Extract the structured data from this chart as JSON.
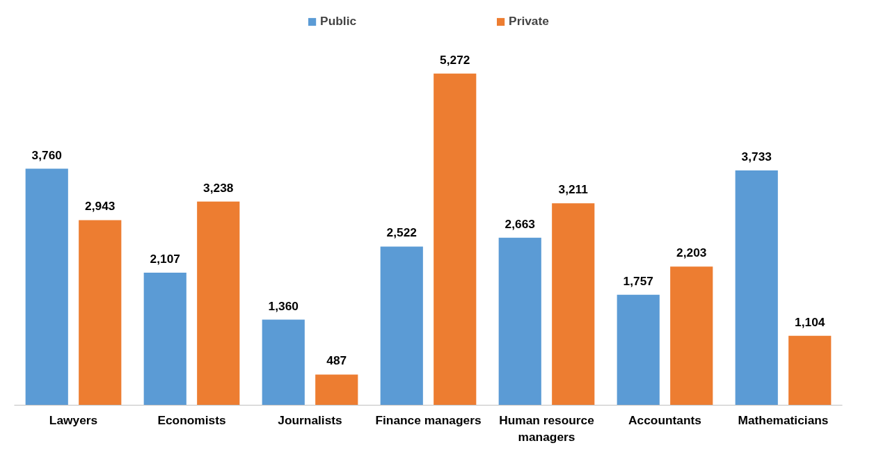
{
  "chart_data": {
    "type": "bar",
    "categories": [
      "Lawyers",
      "Economists",
      "Journalists",
      "Finance managers",
      "Human resource managers",
      "Accountants",
      "Mathematicians"
    ],
    "series": [
      {
        "name": "Public",
        "color": "#5b9bd5",
        "values": [
          3760,
          2107,
          1360,
          2522,
          2663,
          1757,
          3733
        ],
        "value_labels": [
          "3,760",
          "2,107",
          "1,360",
          "2,522",
          "2,663",
          "1,757",
          "3,733"
        ]
      },
      {
        "name": "Private",
        "color": "#ed7d31",
        "values": [
          2943,
          3238,
          487,
          5272,
          3211,
          2203,
          1104
        ],
        "value_labels": [
          "2,943",
          "3,238",
          "487",
          "5,272",
          "3,211",
          "2,203",
          "1,104"
        ]
      }
    ],
    "legend": "top",
    "grid": false
  }
}
